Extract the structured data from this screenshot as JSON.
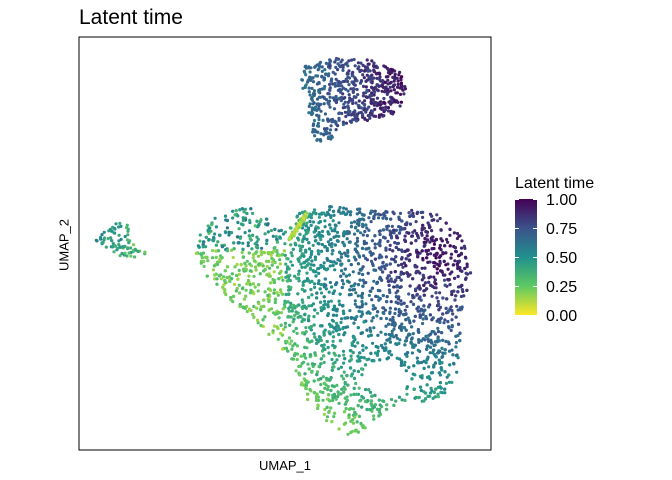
{
  "chart_data": {
    "type": "scatter",
    "title": "Latent time",
    "xlabel": "UMAP_1",
    "ylabel": "UMAP_2",
    "axis_ticks_shown": false,
    "grid": false,
    "color_scale": {
      "name": "viridis",
      "reversed": true,
      "legend_title": "Latent time",
      "range": [
        0,
        1
      ],
      "ticks": [
        "1.00",
        "0.75",
        "0.50",
        "0.25",
        "0.00"
      ],
      "colors": [
        "#fde725",
        "#5dc963",
        "#21908d",
        "#3b528b",
        "#440154"
      ]
    },
    "legend_position": "right",
    "clusters": [
      {
        "name": "top cluster",
        "center": [
          0.7,
          0.9
        ],
        "latent_time_range": [
          0.65,
          1.0
        ]
      },
      {
        "name": "left small cluster",
        "center": [
          0.1,
          0.52
        ],
        "latent_time_range": [
          0.2,
          0.9
        ]
      },
      {
        "name": "main cluster",
        "center": [
          0.7,
          0.4
        ],
        "latent_time_range": [
          0.0,
          1.0
        ]
      }
    ]
  }
}
